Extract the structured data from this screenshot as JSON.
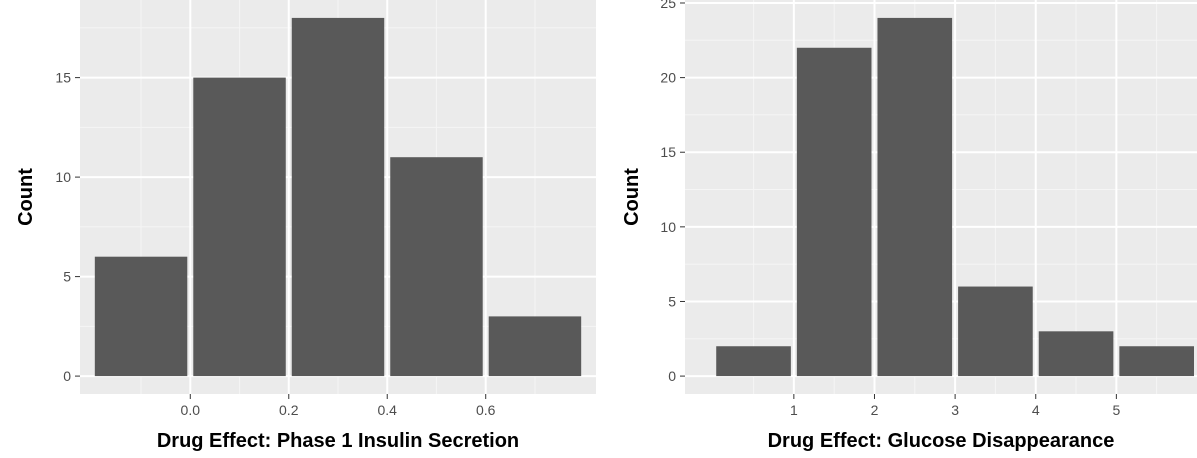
{
  "colors": {
    "panel_bg": "#ebebeb",
    "grid_major": "#ffffff",
    "grid_minor": "#f5f5f5",
    "bar_fill": "#595959",
    "tick_text": "#4d4d4d",
    "axis_title": "#000000"
  },
  "chart_data": [
    {
      "type": "bar",
      "xlabel": "Drug Effect: Phase 1 Insulin Secretion",
      "ylabel": "Count",
      "bins": [
        {
          "x0": -0.2,
          "x1": 0.0,
          "count": 6
        },
        {
          "x0": 0.0,
          "x1": 0.2,
          "count": 15
        },
        {
          "x0": 0.2,
          "x1": 0.4,
          "count": 18
        },
        {
          "x0": 0.4,
          "x1": 0.6,
          "count": 11
        },
        {
          "x0": 0.6,
          "x1": 0.8,
          "count": 3
        }
      ],
      "xlim": [
        -0.224,
        0.824
      ],
      "ylim": [
        -0.9,
        18.9
      ],
      "x_ticks": [
        0.0,
        0.2,
        0.4,
        0.6
      ],
      "x_tick_labels": [
        "0.0",
        "0.2",
        "0.4",
        "0.6"
      ],
      "y_ticks": [
        0,
        5,
        10,
        15
      ],
      "y_tick_labels": [
        "0",
        "5",
        "10",
        "15"
      ],
      "grid": true
    },
    {
      "type": "bar",
      "xlabel": "Drug Effect: Glucose Disappearance",
      "ylabel": "Count",
      "bins": [
        {
          "x0": 0,
          "x1": 1,
          "count": 2
        },
        {
          "x0": 1,
          "x1": 2,
          "count": 22
        },
        {
          "x0": 2,
          "x1": 3,
          "count": 24
        },
        {
          "x0": 3,
          "x1": 4,
          "count": 6
        },
        {
          "x0": 4,
          "x1": 5,
          "count": 3
        },
        {
          "x0": 5,
          "x1": 6,
          "count": 2
        }
      ],
      "xlim": [
        -0.35,
        6.0
      ],
      "ylim": [
        -1.2,
        25.2
      ],
      "x_ticks": [
        1,
        2,
        3,
        4,
        5
      ],
      "x_tick_labels": [
        "1",
        "2",
        "3",
        "4",
        "5"
      ],
      "y_ticks": [
        0,
        5,
        10,
        15,
        20,
        25
      ],
      "y_tick_labels": [
        "0",
        "5",
        "10",
        "15",
        "20",
        "25"
      ],
      "grid": true
    }
  ]
}
